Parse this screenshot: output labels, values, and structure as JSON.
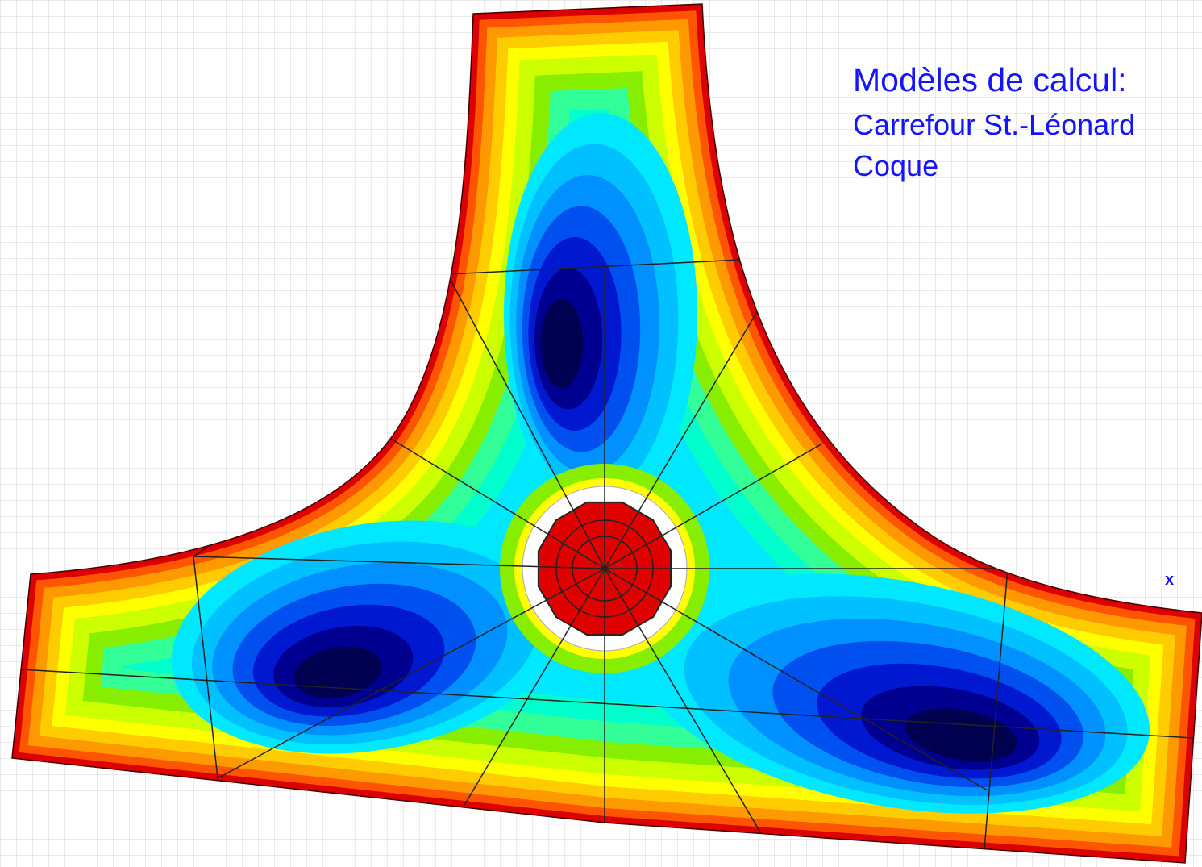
{
  "title": "Modèles de calcul:",
  "lines": [
    "Carrefour St.-Léonard",
    "Coque"
  ],
  "marker": "x"
}
